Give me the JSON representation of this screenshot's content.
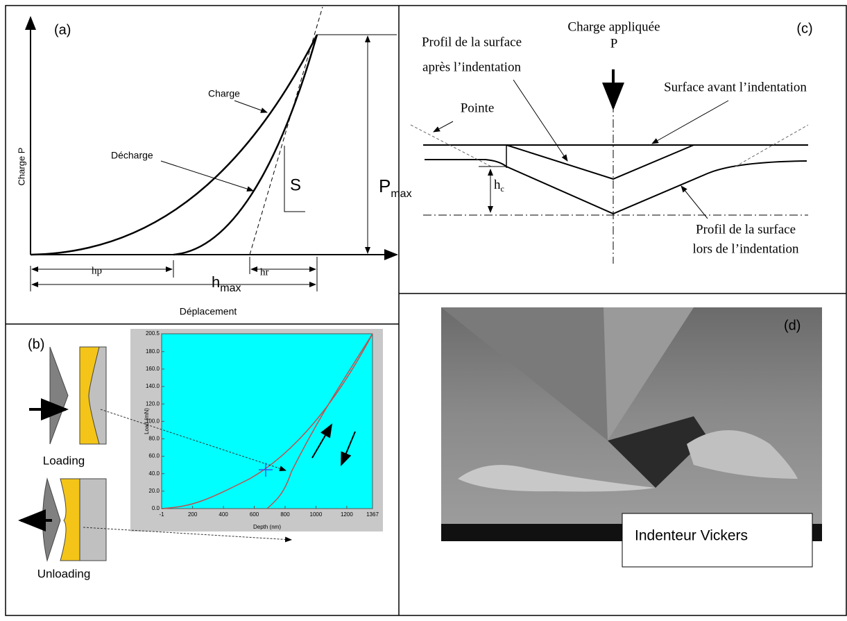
{
  "panel_a": {
    "label": "(a)",
    "y_axis": "Charge P",
    "charge": "Charge",
    "decharge": "Décharge",
    "slope": "S",
    "pmax": "P",
    "pmax_sub": "max",
    "hp": "hp",
    "hr": "hr",
    "hmax": "h",
    "hmax_sub": "max",
    "x_axis": "Déplacement"
  },
  "panel_b": {
    "label": "(b)",
    "loading": "Loading",
    "unloading": "Unloading",
    "y_axis": "Load (mN)",
    "x_axis": "Depth (nm)",
    "yticks": [
      "0.0",
      "20.0",
      "40.0",
      "60.0",
      "80.0",
      "100.0",
      "120.0",
      "140.0",
      "160.0",
      "180.0",
      "200.5"
    ],
    "xticks": [
      "-1",
      "200",
      "400",
      "600",
      "800",
      "1000",
      "1200",
      "1367"
    ]
  },
  "panel_c": {
    "label": "(c)",
    "load_title": "Charge appliquée",
    "load_symbol": "P",
    "after_1": "Profil de la surface",
    "after_2": "après l’indentation",
    "before": "Surface avant l’indentation",
    "tip": "Pointe",
    "hc": "h",
    "hc_sub": "c",
    "during_1": "Profil de la surface",
    "during_2": "lors de l’indentation"
  },
  "panel_d": {
    "label": "(d)",
    "caption": "Indenteur Vickers"
  }
}
